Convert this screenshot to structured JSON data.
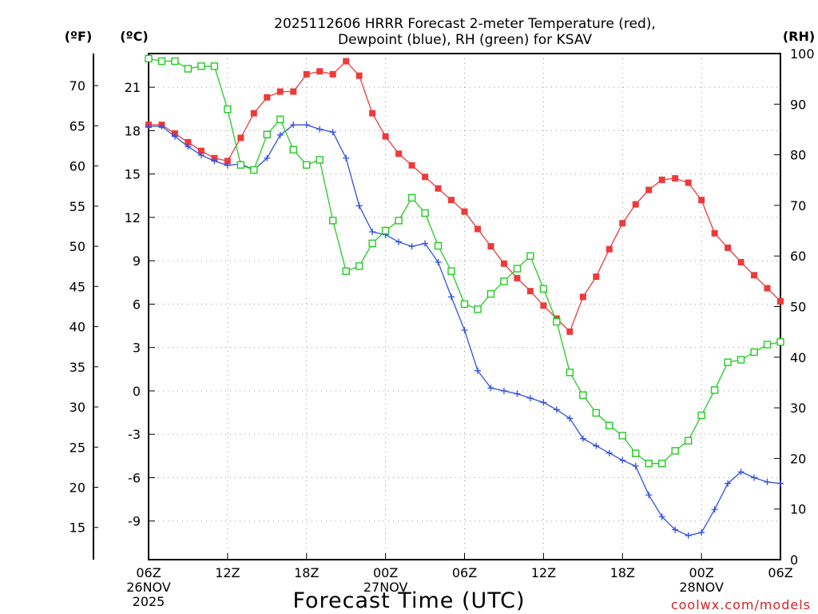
{
  "chart_data": {
    "type": "line",
    "title_line1": "2025112606 HRRR Forecast 2-meter Temperature (red),",
    "title_line2": "Dewpoint (blue), RH (green) for KSAV",
    "unit_f": "(ºF)",
    "unit_c": "(ºC)",
    "unit_rh": "(RH)",
    "xlabel": "Forecast Time (UTC)",
    "credit": "coolwx.com/models",
    "grid": true,
    "hours": [
      0,
      1,
      2,
      3,
      4,
      5,
      6,
      7,
      8,
      9,
      10,
      11,
      12,
      13,
      14,
      15,
      16,
      17,
      18,
      19,
      20,
      21,
      22,
      23,
      24,
      25,
      26,
      27,
      28,
      29,
      30,
      31,
      32,
      33,
      34,
      35,
      36,
      37,
      38,
      39,
      40,
      41,
      42,
      43,
      44,
      45,
      46,
      47,
      48
    ],
    "xlim": [
      0,
      48
    ],
    "ylim_c": [
      -11.67,
      23.33
    ],
    "ylim_rh": [
      0,
      100
    ],
    "x_ticks": [
      {
        "hour": 0,
        "label": "06Z",
        "sub1": "26NOV",
        "sub2": "2025"
      },
      {
        "hour": 6,
        "label": "12Z",
        "sub1": "",
        "sub2": ""
      },
      {
        "hour": 12,
        "label": "18Z",
        "sub1": "",
        "sub2": ""
      },
      {
        "hour": 18,
        "label": "00Z",
        "sub1": "27NOV",
        "sub2": ""
      },
      {
        "hour": 24,
        "label": "06Z",
        "sub1": "",
        "sub2": ""
      },
      {
        "hour": 30,
        "label": "12Z",
        "sub1": "",
        "sub2": ""
      },
      {
        "hour": 36,
        "label": "18Z",
        "sub1": "",
        "sub2": ""
      },
      {
        "hour": 42,
        "label": "00Z",
        "sub1": "28NOV",
        "sub2": ""
      },
      {
        "hour": 48,
        "label": "06Z",
        "sub1": "",
        "sub2": ""
      }
    ],
    "c_ticks": [
      -9,
      -6,
      -3,
      0,
      3,
      6,
      9,
      12,
      15,
      18,
      21
    ],
    "f_ticks": [
      15,
      20,
      25,
      30,
      35,
      40,
      45,
      50,
      55,
      60,
      65,
      70
    ],
    "rh_ticks": [
      0,
      10,
      20,
      30,
      40,
      50,
      60,
      70,
      80,
      90,
      100
    ],
    "series": [
      {
        "name": "Temperature",
        "unit": "C",
        "color": "#ee3a3a",
        "marker": "filled-square",
        "values": [
          18.4,
          18.4,
          17.8,
          17.2,
          16.6,
          16.1,
          15.9,
          17.5,
          19.2,
          20.3,
          20.7,
          20.7,
          21.9,
          22.1,
          21.9,
          22.8,
          21.8,
          19.2,
          17.6,
          16.4,
          15.6,
          14.8,
          14.0,
          13.2,
          12.4,
          11.2,
          10.0,
          8.8,
          7.8,
          6.9,
          5.9,
          5.0,
          4.1,
          6.5,
          7.9,
          9.8,
          11.6,
          12.9,
          13.9,
          14.6,
          14.7,
          14.4,
          13.2,
          10.9,
          9.9,
          8.9,
          8.0,
          7.1,
          6.2
        ]
      },
      {
        "name": "Dewpoint",
        "unit": "C",
        "color": "#3050e0",
        "marker": "plus",
        "values": [
          18.3,
          18.3,
          17.6,
          16.9,
          16.3,
          15.9,
          15.6,
          15.7,
          15.3,
          16.1,
          17.7,
          18.4,
          18.4,
          18.1,
          17.9,
          16.1,
          12.8,
          11.0,
          10.8,
          10.3,
          10.0,
          10.2,
          8.9,
          6.5,
          4.2,
          1.4,
          0.2,
          0.0,
          -0.2,
          -0.5,
          -0.8,
          -1.3,
          -1.9,
          -3.3,
          -3.8,
          -4.3,
          -4.8,
          -5.2,
          -7.2,
          -8.7,
          -9.6,
          -10.0,
          -9.8,
          -8.2,
          -6.4,
          -5.6,
          -6.0,
          -6.3,
          -6.4
        ]
      },
      {
        "name": "RH",
        "unit": "%",
        "color": "#22cc22",
        "marker": "open-square",
        "values": [
          99.0,
          98.5,
          98.5,
          97.0,
          97.5,
          97.5,
          89.0,
          78.0,
          77.0,
          84.0,
          87.0,
          81.0,
          78.0,
          79.0,
          67.0,
          57.0,
          58.0,
          62.5,
          65.0,
          67.0,
          71.5,
          68.5,
          62.0,
          57.0,
          50.5,
          49.5,
          52.5,
          55.0,
          57.5,
          60.0,
          53.5,
          47.0,
          37.0,
          32.5,
          29.0,
          26.5,
          24.5,
          21.0,
          19.0,
          19.0,
          21.5,
          23.5,
          28.5,
          33.5,
          39.0,
          39.5,
          41.0,
          42.5,
          43.0
        ]
      }
    ]
  }
}
